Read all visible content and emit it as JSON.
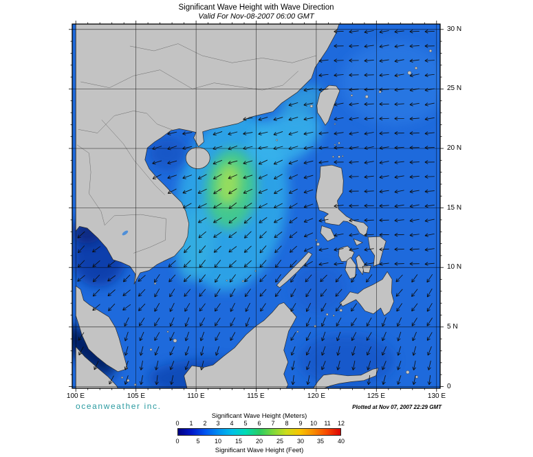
{
  "title": "Significant Wave Height with Wave Direction",
  "subtitle": "Valid For Nov-08-2007 06:00 GMT",
  "branding": "oceanweather inc.",
  "plotted": {
    "label": "Plotted at",
    "value": "Nov 07, 2007 22:29 GMT"
  },
  "axes": {
    "lat_labels": [
      "30 N",
      "25 N",
      "20 N",
      "15 N",
      "10 N",
      "5 N",
      "0"
    ],
    "lon_labels": [
      "100 E",
      "105 E",
      "110 E",
      "115 E",
      "120 E",
      "125 E",
      "130 E"
    ]
  },
  "colorbar": {
    "title_meters": "Significant Wave Height (Meters)",
    "title_feet": "Significant Wave Height (Feet)",
    "meters_ticks": [
      "0",
      "1",
      "2",
      "3",
      "4",
      "5",
      "6",
      "7",
      "8",
      "9",
      "10",
      "11",
      "12"
    ],
    "feet_ticks": [
      "0",
      "5",
      "10",
      "15",
      "20",
      "25",
      "30",
      "35",
      "40"
    ],
    "colors": [
      "#000082",
      "#0018c8",
      "#0054f0",
      "#0090f0",
      "#00c0e8",
      "#00dcb4",
      "#28cc64",
      "#7cd83c",
      "#ccdc1c",
      "#f8c400",
      "#f88c00",
      "#f84800",
      "#dc0404"
    ]
  },
  "chart_data": {
    "type": "heatmap",
    "title": "Significant Wave Height with Wave Direction",
    "subtitle": "Valid For Nov-08-2007 06:00 GMT",
    "x_ticks_deg_east": [
      100,
      105,
      110,
      115,
      120,
      125,
      130
    ],
    "y_ticks_deg_north": [
      0,
      5,
      10,
      15,
      20,
      25,
      30
    ],
    "colorbar_meters_scale": [
      0,
      1,
      2,
      3,
      4,
      5,
      6,
      7,
      8,
      9,
      10,
      11,
      12
    ],
    "colorbar_feet_scale": [
      0,
      5,
      10,
      15,
      20,
      25,
      30,
      35,
      40
    ],
    "overlay": "wave direction arrows"
  }
}
